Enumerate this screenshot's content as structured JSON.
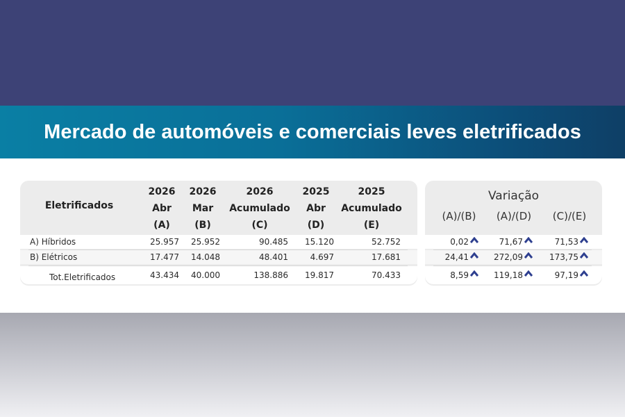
{
  "title": "Mercado de automóveis e comerciais leves eletrificados",
  "table": {
    "row_header": "Eletrificados",
    "columns": [
      {
        "year": "2026",
        "period": "Abr",
        "code": "(A)"
      },
      {
        "year": "2026",
        "period": "Mar",
        "code": "(B)"
      },
      {
        "year": "2026",
        "period": "Acumulado",
        "code": "(C)"
      },
      {
        "year": "2025",
        "period": "Abr",
        "code": "(D)"
      },
      {
        "year": "2025",
        "period": "Acumulado",
        "code": "(E)"
      }
    ],
    "rows": [
      {
        "label": "A) Híbridos",
        "values": [
          "25.957",
          "25.952",
          "90.485",
          "15.120",
          "52.752"
        ]
      },
      {
        "label": "B) Elétricos",
        "values": [
          "17.477",
          "14.048",
          "48.401",
          "4.697",
          "17.681"
        ]
      },
      {
        "label": "Tot.Eletrificados",
        "values": [
          "43.434",
          "40.000",
          "138.886",
          "19.817",
          "70.433"
        ]
      }
    ]
  },
  "variation": {
    "title": "Variação",
    "columns": [
      "(A)/(B)",
      "(A)/(D)",
      "(C)/(E)"
    ],
    "trend_icon": "arrow-up-icon",
    "icon_color": "#2e3f8f",
    "rows": [
      [
        "0,02",
        "71,67",
        "71,53"
      ],
      [
        "24,41",
        "272,09",
        "173,75"
      ],
      [
        "8,59",
        "119,18",
        "97,19"
      ]
    ]
  },
  "colors": {
    "top_band": "#3d4276",
    "title_band_start": "#0a7fa4",
    "title_band_end": "#0e3f66"
  }
}
